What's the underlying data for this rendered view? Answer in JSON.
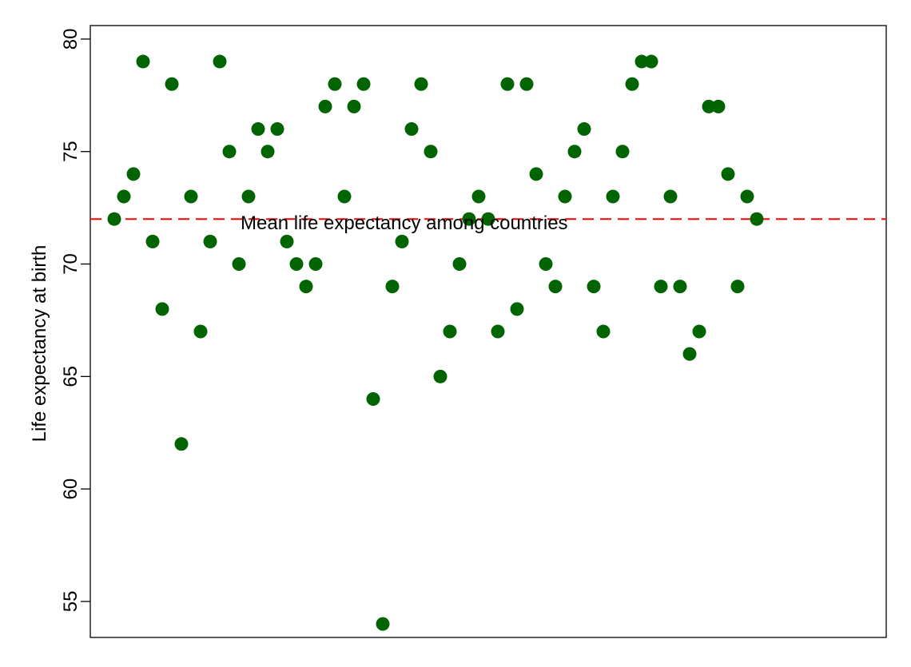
{
  "chart_data": {
    "type": "scatter",
    "title": "",
    "xlabel": "",
    "ylabel": "Life expectancy at birth",
    "ylim": [
      53.4,
      80.6
    ],
    "yticks": [
      55,
      60,
      65,
      70,
      75,
      80
    ],
    "grid": false,
    "x_axis_shown": false,
    "marker_color": "#006400",
    "reference_line": {
      "y": 72,
      "color": "#ff0000",
      "style": "dashed",
      "label": "Mean life expectancy among countries"
    },
    "series": [
      {
        "values": [
          72,
          73,
          74,
          79,
          71,
          68,
          78,
          62,
          73,
          67,
          71,
          79,
          75,
          70,
          73,
          76,
          75,
          76,
          71,
          70,
          69,
          70,
          77,
          78,
          73,
          77,
          78,
          64,
          54,
          69,
          71,
          76,
          78,
          75,
          65,
          67,
          70,
          72,
          73,
          72,
          67,
          78,
          68,
          78,
          74,
          70,
          69,
          73,
          75,
          76,
          69,
          67,
          73,
          75,
          78,
          79,
          79,
          69,
          73,
          69,
          66,
          67,
          77,
          77,
          74,
          69,
          73,
          72
        ]
      }
    ]
  }
}
